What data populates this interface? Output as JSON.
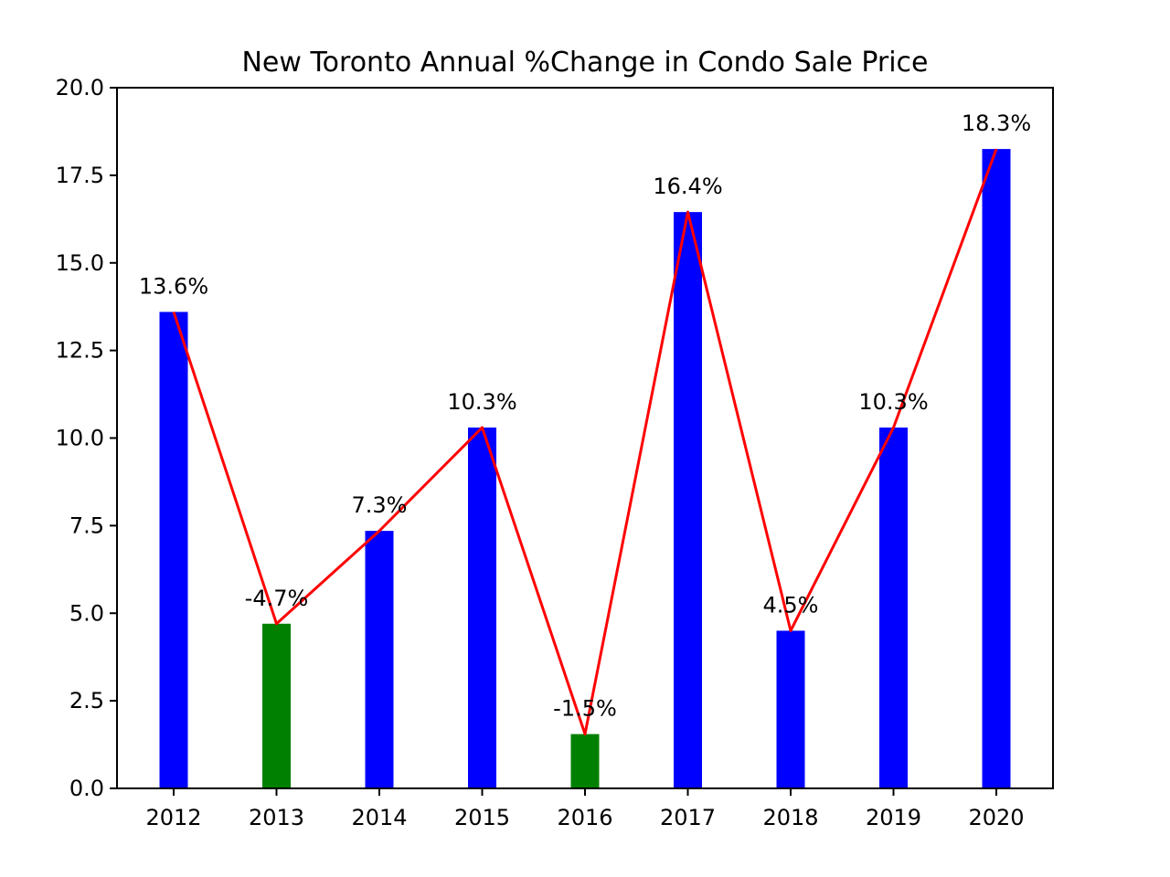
{
  "chart_data": {
    "type": "bar",
    "title": "New Toronto Annual %Change in Condo Sale Price",
    "xlabel": "",
    "ylabel": "",
    "categories": [
      "2012",
      "2013",
      "2014",
      "2015",
      "2016",
      "2017",
      "2018",
      "2019",
      "2020"
    ],
    "values": [
      13.6,
      4.7,
      7.35,
      10.3,
      1.55,
      16.45,
      4.5,
      10.3,
      18.25
    ],
    "labels": [
      "13.6%",
      "-4.7%",
      "7.3%",
      "10.3%",
      "-1.5%",
      "16.4%",
      "4.5%",
      "10.3%",
      "18.3%"
    ],
    "bar_colors": [
      "#0000ff",
      "#008000",
      "#0000ff",
      "#0000ff",
      "#008000",
      "#0000ff",
      "#0000ff",
      "#0000ff",
      "#0000ff"
    ],
    "line_color": "#ff0000",
    "ylim": [
      0,
      20
    ],
    "yticks": [
      0,
      2.5,
      5,
      7.5,
      10,
      12.5,
      15,
      17.5,
      20
    ],
    "ytick_labels": [
      "0.0",
      "2.5",
      "5.0",
      "7.5",
      "10.0",
      "12.5",
      "15.0",
      "17.5",
      "20.0"
    ],
    "grid": false,
    "legend": "none"
  }
}
